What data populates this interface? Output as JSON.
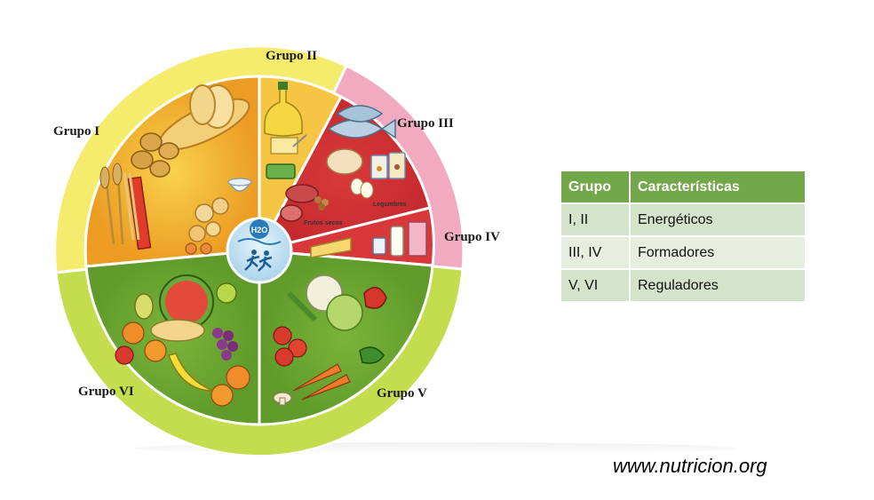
{
  "groups": {
    "g1": "Grupo I",
    "g2": "Grupo II",
    "g3": "Grupo III",
    "g4": "Grupo IV",
    "g5": "Grupo V",
    "g6": "Grupo VI"
  },
  "inner_labels": {
    "frutos_secos": "Frutos secos",
    "legumbres": "Legumbres",
    "water": "H2O"
  },
  "table": {
    "headers": [
      "Grupo",
      "Características"
    ],
    "rows": [
      [
        "I, II",
        "Energéticos"
      ],
      [
        "III, IV",
        "Formadores"
      ],
      [
        "V, VI",
        "Reguladores"
      ]
    ]
  },
  "footer": "www.nutricion.org",
  "colors": {
    "energeticos": "#f3c33a",
    "formadores": "#e1536a",
    "reguladores": "#7fb438",
    "ring_yellow": "#f5ec6e",
    "ring_pink": "#f2aac0",
    "ring_green": "#c4dd4f",
    "table_header": "#73a84a"
  }
}
